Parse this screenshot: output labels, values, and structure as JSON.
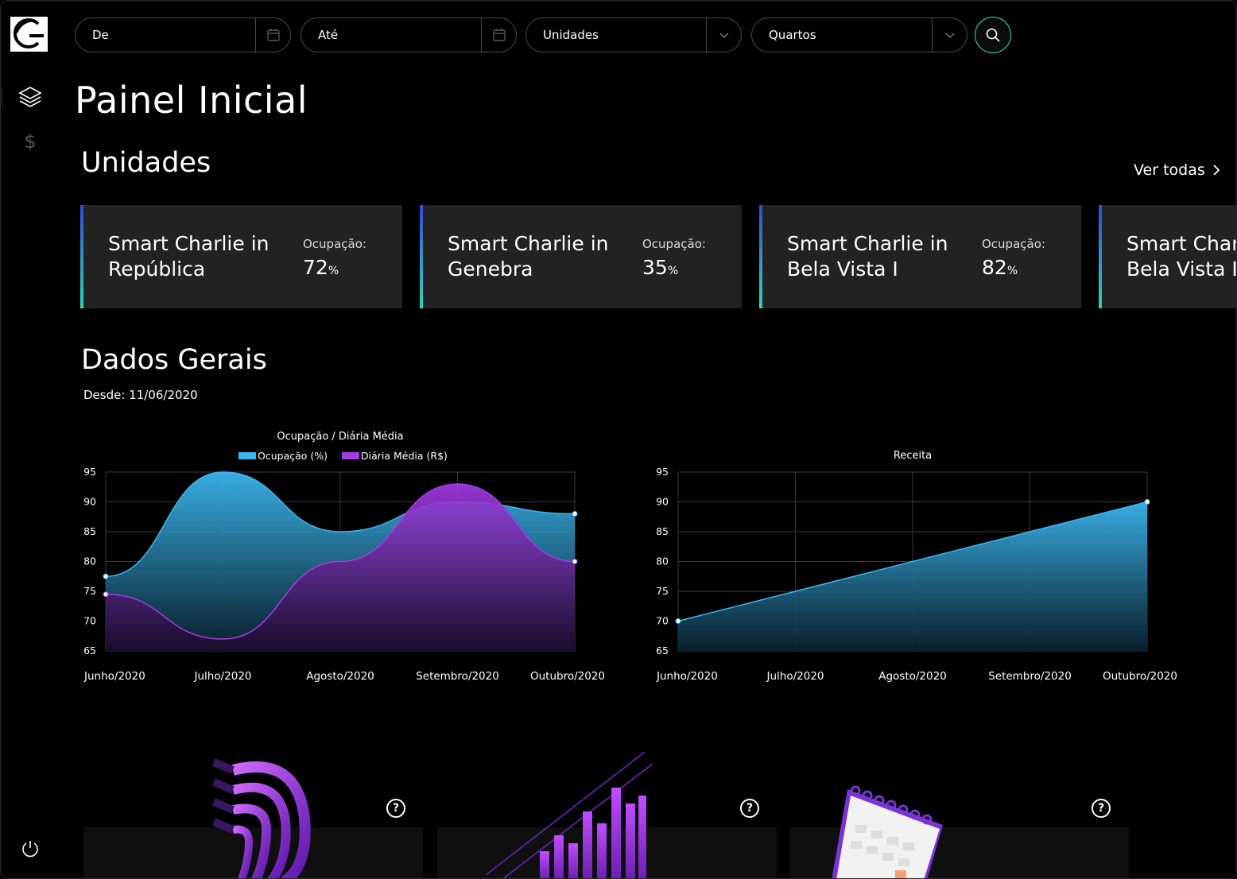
{
  "filters": {
    "from_label": "De",
    "to_label": "Até",
    "units_label": "Unidades",
    "rooms_label": "Quartos"
  },
  "icons": {
    "logo": "charlie-logo-icon",
    "layers": "layers-icon",
    "dollar": "dollar-icon",
    "power": "power-icon",
    "calendar": "calendar-icon",
    "chevron": "chevron-down-icon",
    "search": "search-icon",
    "help": "help-icon"
  },
  "page": {
    "title": "Painel Inicial"
  },
  "units": {
    "title": "Unidades",
    "see_all": "Ver todas",
    "occupancy_label": "Ocupação:",
    "cards": [
      {
        "name": "Smart Charlie in República",
        "occupancy": "72",
        "unit": "%"
      },
      {
        "name": "Smart Charlie in Genebra",
        "occupancy": "35",
        "unit": "%"
      },
      {
        "name": "Smart Charlie in Bela Vista I",
        "occupancy": "82",
        "unit": "%"
      },
      {
        "name": "Smart Charlie in Bela Vista II",
        "occupancy": "",
        "unit": ""
      }
    ]
  },
  "general": {
    "title": "Dados Gerais",
    "since": "Desde: 11/06/2020"
  },
  "help_symbol": "?",
  "colors": {
    "accent_teal": "#2fd6b5",
    "occupancy_blue": "#3bb6ee",
    "daily_purple": "#a43be6",
    "card_bg": "#222222"
  },
  "chart_data": [
    {
      "type": "area",
      "title": "Ocupação / Diária Média",
      "categories": [
        "Junho/2020",
        "Julho/2020",
        "Agosto/2020",
        "Setembro/2020",
        "Outubro/2020"
      ],
      "series": [
        {
          "name": "Ocupação (%)",
          "values": [
            77.5,
            95,
            85,
            90,
            88
          ]
        },
        {
          "name": "Diária Média (R$)",
          "values": [
            74.5,
            67,
            80,
            93,
            80
          ]
        }
      ],
      "ylim": [
        65,
        95
      ],
      "yticks": [
        95,
        90,
        85,
        80,
        75,
        70,
        65
      ],
      "legend": "top",
      "grid": true
    },
    {
      "type": "area",
      "title": "Receita",
      "categories": [
        "Junho/2020",
        "Julho/2020",
        "Agosto/2020",
        "Setembro/2020",
        "Outubro/2020"
      ],
      "series": [
        {
          "values": [
            70,
            75,
            80,
            85,
            90
          ]
        }
      ],
      "ylim": [
        65,
        95
      ],
      "yticks": [
        95,
        90,
        85,
        80,
        75,
        70,
        65
      ],
      "grid": true
    }
  ]
}
